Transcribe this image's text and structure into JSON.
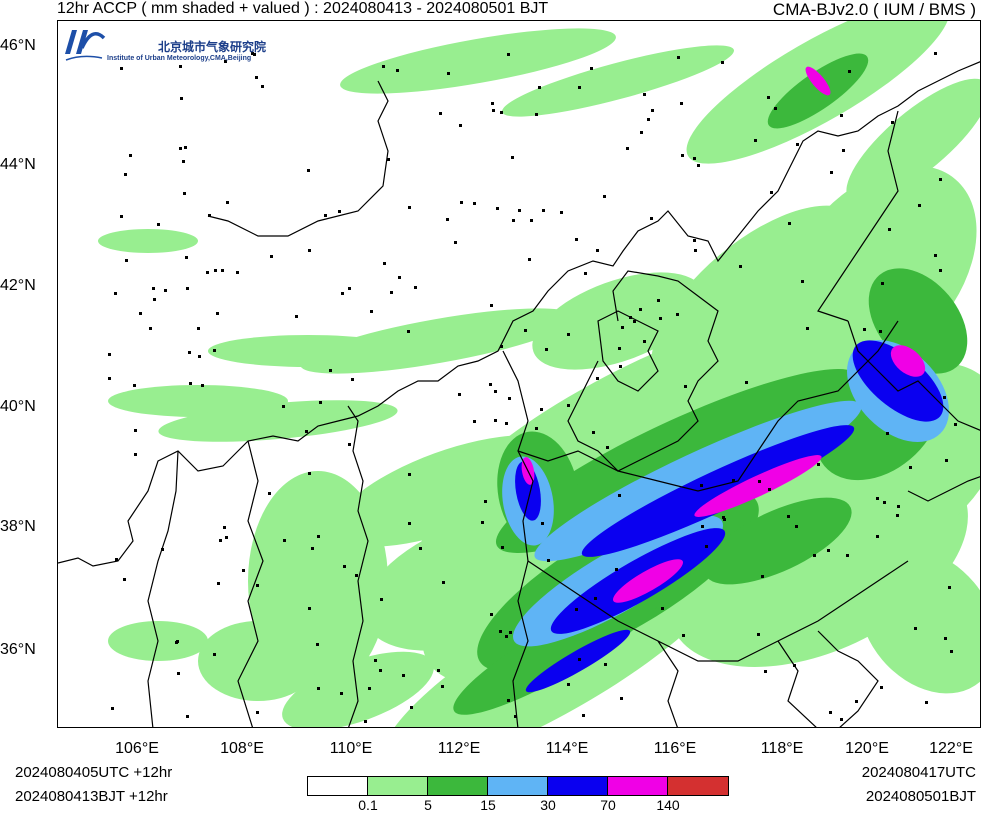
{
  "header": {
    "title_left": "12hr ACCP ( mm shaded + valued ) : 2024080413 - 2024080501 BJT",
    "title_right": "CMA-BJv2.0 ( IUM / BMS )"
  },
  "logo": {
    "org_cn": "北京城市气象研究院",
    "org_en": "Institute of Urban Meteorology,CMA,Beijing"
  },
  "map": {
    "lat_labels": [
      "46°N",
      "44°N",
      "42°N",
      "40°N",
      "38°N",
      "36°N"
    ],
    "lon_labels": [
      "106°E",
      "108°E",
      "110°E",
      "112°E",
      "114°E",
      "116°E",
      "118°E",
      "120°E",
      "122°E"
    ],
    "colors": {
      "c1": "#98ee90",
      "c2": "#3cb83c",
      "c3": "#5fb4f5",
      "c4": "#0a00f0",
      "c5": "#f000e6",
      "c6": "#d43030"
    }
  },
  "footer": {
    "left_utc": "2024080405UTC  +12hr",
    "left_bjt": "2024080413BJT  +12hr",
    "right_utc": "2024080417UTC",
    "right_bjt": "2024080501BJT"
  },
  "legend": {
    "colors": [
      "#ffffff",
      "#98ee90",
      "#3cb83c",
      "#5fb4f5",
      "#0a00f0",
      "#f000e6",
      "#d43030"
    ],
    "ticks": [
      "0.1",
      "5",
      "15",
      "30",
      "70",
      "140"
    ]
  }
}
